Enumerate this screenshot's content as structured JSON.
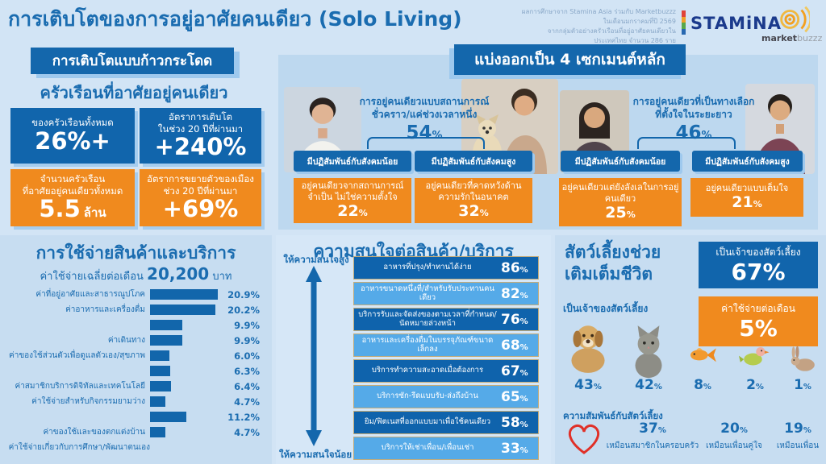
{
  "ui": {
    "pct": "%"
  },
  "header": {
    "title": "การเติบโตของการอยู่อาศัยคนเดียว (Solo Living)",
    "credit_line1": "ผลการศึกษาจาก Stamina Asia ร่วมกับ Marketbuzzz ในเดือนมกราคมที่ปี 2569",
    "credit_line2": "จากกลุ่มตัวอย่างครัวเรือนที่อยู่อาศัยคนเดียวในประเทศไทย จำนวน 286 ราย",
    "stamina_logo": "STAMiNA",
    "marketbuzzz_market": "market",
    "marketbuzzz_buzzz": "buzzz"
  },
  "growth": {
    "badge": "การเติบโตแบบก้าวกระโดด",
    "heading": "ครัวเรือนที่อาศัยอยู่คนเดียว",
    "boxes": [
      {
        "style": "blue",
        "lines": [
          "ของครัวเรือนทั้งหมด"
        ],
        "value": "26%+",
        "unit": ""
      },
      {
        "style": "blue",
        "lines": [
          "อัตราการเติบโต",
          "ในช่วง 20 ปีที่ผ่านมา"
        ],
        "value": "+240%",
        "unit": ""
      },
      {
        "style": "orange",
        "lines": [
          "จำนวนครัวเรือน",
          "ที่อาศัยอยู่คนเดียวทั้งหมด"
        ],
        "value": "5.5",
        "unit": "ล้าน"
      },
      {
        "style": "orange",
        "lines": [
          "อัตราการขยายตัวของเมือง",
          "ช่วง 20 ปีที่ผ่านมา"
        ],
        "value": "+69%",
        "unit": ""
      }
    ]
  },
  "segments": {
    "heading": "แบ่งออกเป็น 4 เซกเมนต์หลัก",
    "groups": [
      {
        "title_lines": [
          "การอยู่คนเดียวแบบสถานการณ์",
          "ชั่วคราว/แค่ช่วงเวลาหนึ่ง"
        ],
        "percent": "54",
        "sub": [
          {
            "social": "มีปฏิสัมพันธ์กับสังคมน้อย",
            "desc_lines": [
              "อยู่คนเดียวจากสถานการณ์",
              "จำเป็น ไม่ใช่ความตั้งใจ"
            ],
            "percent": "22"
          },
          {
            "social": "มีปฏิสัมพันธ์กับสังคมสูง",
            "desc_lines": [
              "อยู่คนเดียวที่คาดหวังด้าน",
              "ความรักในอนาคต"
            ],
            "percent": "32"
          }
        ]
      },
      {
        "title_lines": [
          "การอยู่คนเดียวที่เป็นทางเลือก",
          "ที่ตั้งใจในระยะยาว"
        ],
        "percent": "46",
        "sub": [
          {
            "social": "มีปฏิสัมพันธ์กับสังคมน้อย",
            "desc_lines": [
              "อยู่คนเดียวแต่ยังลังเลในการอยู่",
              "คนเดียว"
            ],
            "percent": "25"
          },
          {
            "social": "มีปฏิสัมพันธ์กับสังคมสูง",
            "desc_lines": [
              "อยู่คนเดียวแบบเต็มใจ"
            ],
            "percent": "21"
          }
        ]
      }
    ]
  },
  "spending": {
    "title": "การใช้จ่ายสินค้าและบริการ",
    "subtitle_prefix": "ค่าใช้จ่ายเฉลี่ยต่อเดือน",
    "subtitle_value": "20,200",
    "subtitle_unit": "บาท",
    "rows": [
      {
        "label": "ค่าที่อยู่อาศัยและสาธารณูปโภค",
        "value": "20.9"
      },
      {
        "label": "ค่าอาหารและเครื่องดื่ม",
        "value": "20.2"
      },
      {
        "label": "",
        "value": "9.9"
      },
      {
        "label": "ค่าเดินทาง",
        "value": "9.9"
      },
      {
        "label": "ค่าของใช้ส่วนตัวเพื่อดูแลตัวเอง/สุขภาพ",
        "value": "6.0"
      },
      {
        "label": "",
        "value": "6.3"
      },
      {
        "label": "ค่าสมาชิกบริการดิจิทัลและเทคโนโลยี",
        "value": "6.4"
      },
      {
        "label": "ค่าใช้จ่ายสำหรับกิจกรรมยามว่าง",
        "value": "4.7"
      },
      {
        "label": "",
        "value": "11.2"
      },
      {
        "label": "ค่าของใช้และของตกแต่งบ้าน",
        "value": "4.7"
      }
    ],
    "footer_label": "ค่าใช้จ่ายเกี่ยวกับการศึกษา/พัฒนาตนเอง"
  },
  "interest": {
    "title": "ความสนใจต่อสินค้า/บริการ",
    "axis_top": "ให้ความสนใจสูง",
    "axis_bottom": "ให้ความสนใจน้อย",
    "rows": [
      {
        "label": "อาหารที่ปรุง/ทำทานได้ง่าย",
        "value": "86",
        "shade": "dark"
      },
      {
        "label": "อาหารขนาดหนึ่งที่/สำหรับรับประทานคนเดียว",
        "value": "82",
        "shade": "light"
      },
      {
        "label": "บริการรับและจัดส่งของตามเวลาที่กำหนด/นัดหมายล่วงหน้า",
        "value": "76",
        "shade": "dark"
      },
      {
        "label": "อาหารและเครื่องดื่มในบรรจุภัณฑ์ขนาดเล็กลง",
        "value": "68",
        "shade": "light"
      },
      {
        "label": "บริการทำความสะอาดเมื่อต้องการ",
        "value": "67",
        "shade": "dark"
      },
      {
        "label": "บริการซัก-รีดแบบรับ-ส่งถึงบ้าน",
        "value": "65",
        "shade": "light"
      },
      {
        "label": "ยิม/ฟิตเนสที่ออกแบบมาเพื่อใช้คนเดียว",
        "value": "58",
        "shade": "dark"
      },
      {
        "label": "บริการให้เช่าเพื่อน/เพื่อนเช่า",
        "value": "33",
        "shade": "light"
      }
    ]
  },
  "pets": {
    "title_lines": [
      "สัตว์เลี้ยงช่วย",
      "เติมเต็มชีวิต"
    ],
    "own_box": {
      "label": "เป็นเจ้าของสัตว์เลี้ยง",
      "value": "67%"
    },
    "spend_box": {
      "label": "ค่าใช้จ่ายต่อเดือน",
      "value": "5%"
    },
    "own_label": "เป็นเจ้าของสัตว์เลี้ยง",
    "animals": [
      {
        "name": "dog",
        "percent": "43"
      },
      {
        "name": "cat",
        "percent": "42"
      },
      {
        "name": "fish",
        "percent": "8"
      },
      {
        "name": "bird",
        "percent": "2"
      },
      {
        "name": "rabbit",
        "percent": "1"
      }
    ],
    "relationship_label": "ความสัมพันธ์กับสัตว์เลี้ยง",
    "relationship": [
      {
        "percent": "37",
        "caption": "เหมือนสมาชิกในครอบครัว"
      },
      {
        "percent": "20",
        "caption": "เหมือนเพื่อนคู่ใจ"
      },
      {
        "percent": "19",
        "caption": "เหมือนเพื่อน"
      }
    ]
  },
  "colors": {
    "page_bg": "#d2e4f5",
    "panel_bg": "#bdd8ef",
    "dark_blue": "#1165ac",
    "light_blue_row": "#55aae8",
    "orange": "#f08a1e",
    "heading_text": "#1a6cb0",
    "shadow_blue": "#9ec9ee",
    "heart_red": "#e03028"
  },
  "chart_data": [
    {
      "type": "bar",
      "orientation": "horizontal",
      "unit": "%",
      "title": "การใช้จ่ายสินค้าและบริการ",
      "subtitle": "ค่าใช้จ่ายเฉลี่ยต่อเดือน 20,200 บาท",
      "categories": [
        "ค่าที่อยู่อาศัยและสาธารณูปโภค",
        "ค่าอาหารและเครื่องดื่ม",
        "",
        "ค่าเดินทาง",
        "ค่าของใช้ส่วนตัวเพื่อดูแลตัวเอง/สุขภาพ",
        "",
        "ค่าสมาชิกบริการดิจิทัลและเทคโนโลยี",
        "ค่าใช้จ่ายสำหรับกิจกรรมยามว่าง",
        "",
        "ค่าของใช้และของตกแต่งบ้าน"
      ],
      "values": [
        20.9,
        20.2,
        9.9,
        9.9,
        6.0,
        6.3,
        6.4,
        4.7,
        11.2,
        4.7
      ],
      "footnote_category": "ค่าใช้จ่ายเกี่ยวกับการศึกษา/พัฒนาตนเอง",
      "xlim": [
        0,
        21
      ],
      "grid": false
    },
    {
      "type": "bar",
      "orientation": "horizontal",
      "unit": "%",
      "title": "ความสนใจต่อสินค้า/บริการ",
      "categories": [
        "อาหารที่ปรุง/ทำทานได้ง่าย",
        "อาหารขนาดหนึ่งที่/สำหรับรับประทานคนเดียว",
        "บริการรับและจัดส่งของตามเวลาที่กำหนด/นัดหมายล่วงหน้า",
        "อาหารและเครื่องดื่มในบรรจุภัณฑ์ขนาดเล็กลง",
        "บริการทำความสะอาดเมื่อต้องการ",
        "บริการซัก-รีดแบบรับ-ส่งถึงบ้าน",
        "ยิม/ฟิตเนสที่ออกแบบมาเพื่อใช้คนเดียว",
        "บริการให้เช่าเพื่อน/เพื่อนเช่า"
      ],
      "values": [
        86,
        82,
        76,
        68,
        67,
        65,
        58,
        33
      ],
      "axis_top_label": "ให้ความสนใจสูง",
      "axis_bottom_label": "ให้ความสนใจน้อย"
    },
    {
      "type": "bar",
      "unit": "%",
      "title": "เป็นเจ้าของสัตว์เลี้ยง",
      "categories": [
        "dog",
        "cat",
        "fish",
        "bird",
        "rabbit"
      ],
      "values": [
        43,
        42,
        8,
        2,
        1
      ]
    },
    {
      "type": "bar",
      "unit": "%",
      "title": "ความสัมพันธ์กับสัตว์เลี้ยง",
      "categories": [
        "เหมือนสมาชิกในครอบครัว",
        "เหมือนเพื่อนคู่ใจ",
        "เหมือนเพื่อน"
      ],
      "values": [
        37,
        20,
        19
      ]
    },
    {
      "type": "bar",
      "unit": "%",
      "title": "แบ่งออกเป็น 4 เซกเมนต์หลัก",
      "categories": [
        "การอยู่คนเดียวแบบสถานการณ์ชั่วคราว/แค่ช่วงเวลาหนึ่ง",
        "อยู่คนเดียวจากสถานการณ์จำเป็น ไม่ใช่ความตั้งใจ",
        "อยู่คนเดียวที่คาดหวังด้านความรักในอนาคต",
        "การอยู่คนเดียวที่เป็นทางเลือกที่ตั้งใจในระยะยาว",
        "อยู่คนเดียวแต่ยังลังเลในการอยู่คนเดียว",
        "อยู่คนเดียวแบบเต็มใจ"
      ],
      "values": [
        54,
        22,
        32,
        46,
        25,
        21
      ]
    }
  ]
}
